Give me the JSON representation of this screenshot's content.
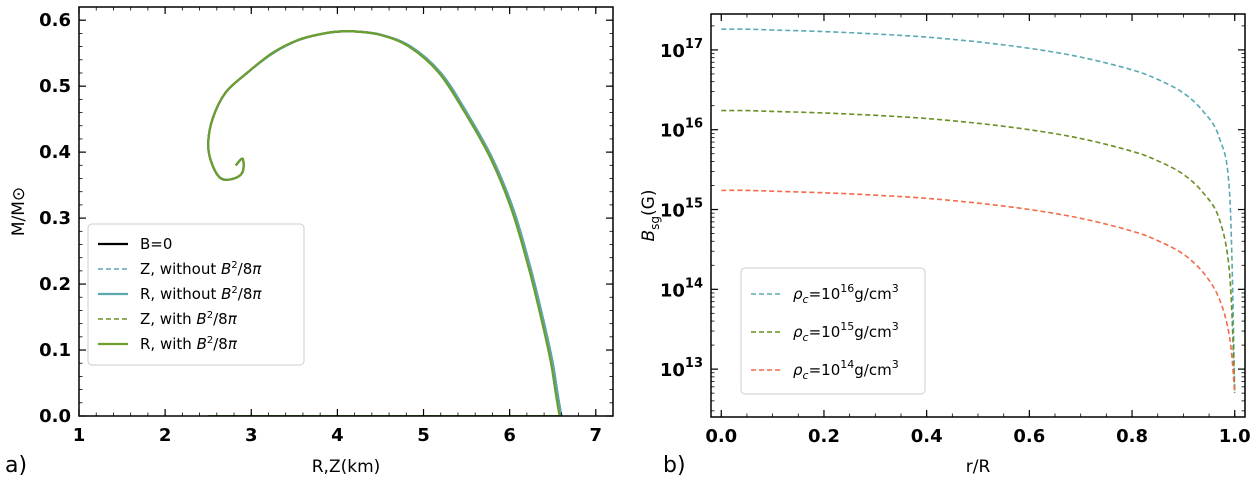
{
  "chart_data": [
    {
      "panel_label": "a)",
      "type": "line",
      "xlabel": "R,Z(km)",
      "ylabel": "M/M⊙",
      "xlim": [
        1,
        7.2
      ],
      "ylim": [
        0,
        0.62
      ],
      "xticks": [
        1,
        2,
        3,
        4,
        5,
        6,
        7
      ],
      "yticks": [
        0.0,
        0.1,
        0.2,
        0.3,
        0.4,
        0.5,
        0.6
      ],
      "xtick_labels": [
        "1",
        "2",
        "3",
        "4",
        "5",
        "6",
        "7"
      ],
      "ytick_labels": [
        "0.0",
        "0.1",
        "0.2",
        "0.3",
        "0.4",
        "0.5",
        "0.6"
      ],
      "series": [
        {
          "name": "B=0",
          "legend": "B=0",
          "color": "#000000",
          "dash": "solid",
          "x": [
            6.6,
            6.56,
            6.5,
            6.4,
            6.25,
            6.05,
            5.8,
            5.5,
            5.2,
            4.85,
            4.5,
            4.2,
            4.05,
            3.85,
            3.55,
            3.25,
            2.95,
            2.7,
            2.55,
            2.5,
            2.55,
            2.65,
            2.8,
            2.9,
            2.9,
            2.82
          ],
          "y": [
            0.0,
            0.03,
            0.08,
            0.14,
            0.22,
            0.31,
            0.39,
            0.46,
            0.52,
            0.56,
            0.578,
            0.583,
            0.583,
            0.58,
            0.57,
            0.55,
            0.52,
            0.49,
            0.45,
            0.41,
            0.38,
            0.36,
            0.36,
            0.37,
            0.39,
            0.38
          ]
        },
        {
          "name": "Z, without B²/8π",
          "legend": "Z, without ",
          "color": "#5aa9b0",
          "dash": "dashed",
          "x": [
            6.6,
            6.56,
            6.5,
            6.4,
            6.25,
            6.05,
            5.8,
            5.5,
            5.2,
            4.85,
            4.5,
            4.2,
            4.05,
            3.85,
            3.55,
            3.25,
            2.95,
            2.7,
            2.55,
            2.5,
            2.55,
            2.65,
            2.8,
            2.9,
            2.9,
            2.82
          ],
          "y": [
            0.0,
            0.03,
            0.08,
            0.14,
            0.22,
            0.31,
            0.39,
            0.46,
            0.52,
            0.56,
            0.578,
            0.583,
            0.583,
            0.58,
            0.57,
            0.55,
            0.52,
            0.49,
            0.45,
            0.41,
            0.38,
            0.36,
            0.36,
            0.37,
            0.39,
            0.38
          ]
        },
        {
          "name": "R, without B²/8π",
          "legend": "R, without ",
          "color": "#5aa9b0",
          "dash": "solid",
          "x": [
            6.6,
            6.56,
            6.5,
            6.4,
            6.25,
            6.05,
            5.8,
            5.5,
            5.2,
            4.85,
            4.5,
            4.2,
            4.05,
            3.85,
            3.55,
            3.25,
            2.95,
            2.7,
            2.55,
            2.5,
            2.55,
            2.65,
            2.8,
            2.9,
            2.9,
            2.82
          ],
          "y": [
            0.0,
            0.03,
            0.08,
            0.14,
            0.22,
            0.31,
            0.39,
            0.46,
            0.52,
            0.56,
            0.578,
            0.583,
            0.583,
            0.58,
            0.57,
            0.55,
            0.52,
            0.49,
            0.45,
            0.41,
            0.38,
            0.36,
            0.36,
            0.37,
            0.39,
            0.38
          ]
        },
        {
          "name": "Z, with B²/8π",
          "legend": "Z, with ",
          "color": "#6b8e23",
          "dash": "dashed",
          "x": [
            6.58,
            6.54,
            6.48,
            6.38,
            6.23,
            6.03,
            5.78,
            5.48,
            5.18,
            4.83,
            4.49,
            4.19,
            4.04,
            3.84,
            3.54,
            3.24,
            2.95,
            2.7,
            2.55,
            2.5,
            2.55,
            2.65,
            2.8,
            2.9,
            2.9,
            2.82
          ],
          "y": [
            0.0,
            0.03,
            0.08,
            0.14,
            0.22,
            0.31,
            0.39,
            0.46,
            0.52,
            0.56,
            0.578,
            0.583,
            0.583,
            0.58,
            0.57,
            0.55,
            0.52,
            0.49,
            0.45,
            0.41,
            0.38,
            0.36,
            0.36,
            0.37,
            0.39,
            0.38
          ]
        },
        {
          "name": "R, with B²/8π",
          "legend": "R, with ",
          "color": "#6b9e2f",
          "dash": "solid",
          "x": [
            6.58,
            6.54,
            6.48,
            6.38,
            6.23,
            6.03,
            5.78,
            5.48,
            5.18,
            4.83,
            4.49,
            4.19,
            4.04,
            3.84,
            3.54,
            3.24,
            2.95,
            2.7,
            2.55,
            2.5,
            2.55,
            2.65,
            2.8,
            2.9,
            2.9,
            2.82
          ],
          "y": [
            0.0,
            0.03,
            0.08,
            0.14,
            0.22,
            0.31,
            0.39,
            0.46,
            0.52,
            0.56,
            0.578,
            0.583,
            0.583,
            0.58,
            0.57,
            0.55,
            0.52,
            0.49,
            0.45,
            0.41,
            0.38,
            0.36,
            0.36,
            0.37,
            0.39,
            0.38
          ]
        }
      ],
      "baseline_segment": {
        "x": [
          2.5,
          6.6
        ],
        "y": [
          0.0,
          0.0
        ],
        "color": "#6b9e2f"
      },
      "legend_placement": "lower-left",
      "legend_math": "B²/8π"
    },
    {
      "panel_label": "b)",
      "type": "line",
      "xlabel": "r/R",
      "ylabel": "Bsg(G)",
      "yscale": "log",
      "xlim": [
        -0.02,
        1.02
      ],
      "ylim_log10": [
        12.4,
        17.45
      ],
      "xticks": [
        0.0,
        0.2,
        0.4,
        0.6,
        0.8,
        1.0
      ],
      "xtick_labels": [
        "0.0",
        "0.2",
        "0.4",
        "0.6",
        "0.8",
        "1.0"
      ],
      "ytick_exponents": [
        13,
        14,
        15,
        16,
        17
      ],
      "ytick_base": "10",
      "legend_placement": "lower-left",
      "series": [
        {
          "name": "ρc=10^16 g/cm^3",
          "rho_exp": "16",
          "color": "#5aa9b0",
          "dash": "dashed",
          "x": [
            0.0,
            0.05,
            0.1,
            0.2,
            0.3,
            0.4,
            0.5,
            0.6,
            0.7,
            0.8,
            0.85,
            0.9,
            0.94,
            0.97,
            0.99,
            1.0
          ],
          "log10_y": [
            17.26,
            17.26,
            17.25,
            17.23,
            17.2,
            17.16,
            17.1,
            17.02,
            16.91,
            16.75,
            16.63,
            16.46,
            16.22,
            15.9,
            15.2,
            12.7
          ]
        },
        {
          "name": "ρc=10^15 g/cm^3",
          "rho_exp": "15",
          "color": "#6b8e23",
          "dash": "dashed",
          "x": [
            0.0,
            0.05,
            0.1,
            0.2,
            0.3,
            0.4,
            0.5,
            0.6,
            0.7,
            0.8,
            0.85,
            0.9,
            0.94,
            0.97,
            0.99,
            1.0
          ],
          "log10_y": [
            16.24,
            16.24,
            16.23,
            16.21,
            16.18,
            16.14,
            16.08,
            16.0,
            15.89,
            15.73,
            15.61,
            15.44,
            15.2,
            14.88,
            14.2,
            12.7
          ]
        },
        {
          "name": "ρc=10^14 g/cm^3",
          "rho_exp": "14",
          "color": "#f26b4a",
          "dash": "dashed",
          "x": [
            0.0,
            0.05,
            0.1,
            0.2,
            0.3,
            0.4,
            0.5,
            0.6,
            0.7,
            0.8,
            0.85,
            0.9,
            0.94,
            0.97,
            0.99,
            1.0
          ],
          "log10_y": [
            15.24,
            15.24,
            15.23,
            15.21,
            15.18,
            15.14,
            15.08,
            15.0,
            14.89,
            14.73,
            14.61,
            14.44,
            14.2,
            13.88,
            13.4,
            12.7
          ]
        }
      ]
    }
  ]
}
